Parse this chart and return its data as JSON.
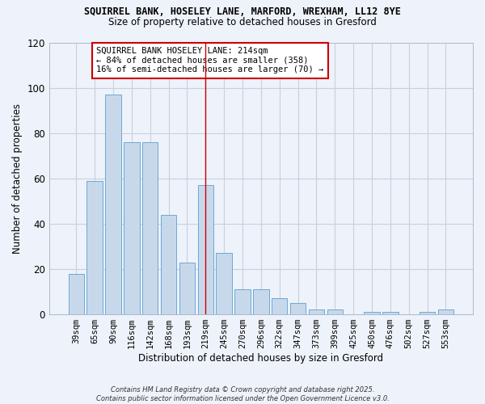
{
  "title1": "SQUIRREL BANK, HOSELEY LANE, MARFORD, WREXHAM, LL12 8YE",
  "title2": "Size of property relative to detached houses in Gresford",
  "xlabel": "Distribution of detached houses by size in Gresford",
  "ylabel": "Number of detached properties",
  "categories": [
    "39sqm",
    "65sqm",
    "90sqm",
    "116sqm",
    "142sqm",
    "168sqm",
    "193sqm",
    "219sqm",
    "245sqm",
    "270sqm",
    "296sqm",
    "322sqm",
    "347sqm",
    "373sqm",
    "399sqm",
    "425sqm",
    "450sqm",
    "476sqm",
    "502sqm",
    "527sqm",
    "553sqm"
  ],
  "values": [
    18,
    59,
    97,
    76,
    76,
    44,
    23,
    57,
    27,
    11,
    11,
    7,
    5,
    2,
    2,
    0,
    1,
    1,
    0,
    1,
    2
  ],
  "bar_color": "#c8d8eb",
  "bar_edge_color": "#6aaad4",
  "vline_x": 7,
  "vline_color": "#cc0000",
  "annotation_text": "SQUIRREL BANK HOSELEY LANE: 214sqm\n← 84% of detached houses are smaller (358)\n16% of semi-detached houses are larger (70) →",
  "annotation_box_color": "#ffffff",
  "annotation_border_color": "#cc0000",
  "ylim": [
    0,
    120
  ],
  "yticks": [
    0,
    20,
    40,
    60,
    80,
    100,
    120
  ],
  "grid_color": "#c8d0e0",
  "bg_color": "#eef2fa",
  "footer": "Contains HM Land Registry data © Crown copyright and database right 2025.\nContains public sector information licensed under the Open Government Licence v3.0."
}
